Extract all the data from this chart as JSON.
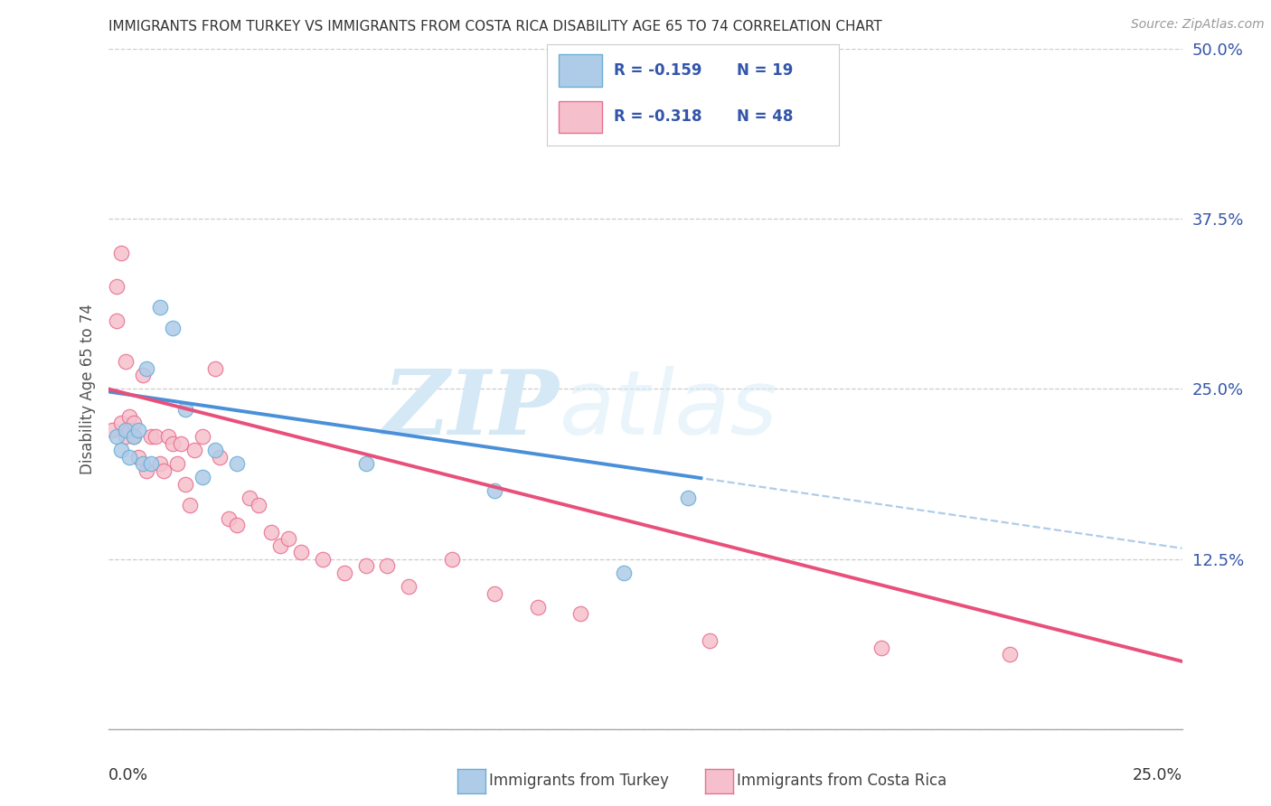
{
  "title": "IMMIGRANTS FROM TURKEY VS IMMIGRANTS FROM COSTA RICA DISABILITY AGE 65 TO 74 CORRELATION CHART",
  "source": "Source: ZipAtlas.com",
  "ylabel": "Disability Age 65 to 74",
  "xlim": [
    0.0,
    0.25
  ],
  "ylim": [
    0.0,
    0.5
  ],
  "yticks": [
    0.0,
    0.125,
    0.25,
    0.375,
    0.5
  ],
  "ytick_labels": [
    "",
    "12.5%",
    "25.0%",
    "37.5%",
    "50.0%"
  ],
  "turkey_R": -0.159,
  "turkey_N": 19,
  "costa_rica_R": -0.318,
  "costa_rica_N": 48,
  "turkey_color": "#aecce8",
  "turkey_edge_color": "#6aaed6",
  "turkey_line_color": "#4a90d9",
  "costa_rica_color": "#f5c0cc",
  "costa_rica_edge_color": "#e87090",
  "costa_rica_line_color": "#e8507a",
  "dashed_color": "#b0cce8",
  "grid_color": "#cccccc",
  "axis_color": "#aaaaaa",
  "title_color": "#333333",
  "legend_text_color": "#3355aa",
  "source_color": "#999999",
  "turkey_x": [
    0.002,
    0.003,
    0.004,
    0.005,
    0.006,
    0.007,
    0.008,
    0.009,
    0.01,
    0.012,
    0.015,
    0.018,
    0.022,
    0.025,
    0.03,
    0.06,
    0.09,
    0.12,
    0.135
  ],
  "turkey_y": [
    0.215,
    0.205,
    0.22,
    0.2,
    0.215,
    0.22,
    0.195,
    0.265,
    0.195,
    0.31,
    0.295,
    0.235,
    0.185,
    0.205,
    0.195,
    0.195,
    0.175,
    0.115,
    0.17
  ],
  "costa_rica_x": [
    0.001,
    0.002,
    0.002,
    0.003,
    0.003,
    0.004,
    0.004,
    0.005,
    0.005,
    0.006,
    0.006,
    0.007,
    0.008,
    0.009,
    0.01,
    0.011,
    0.012,
    0.013,
    0.014,
    0.015,
    0.016,
    0.017,
    0.018,
    0.019,
    0.02,
    0.022,
    0.025,
    0.026,
    0.028,
    0.03,
    0.033,
    0.035,
    0.038,
    0.04,
    0.042,
    0.045,
    0.05,
    0.055,
    0.06,
    0.065,
    0.07,
    0.08,
    0.09,
    0.1,
    0.11,
    0.14,
    0.18,
    0.21
  ],
  "costa_rica_y": [
    0.22,
    0.325,
    0.3,
    0.35,
    0.225,
    0.27,
    0.215,
    0.23,
    0.22,
    0.225,
    0.215,
    0.2,
    0.26,
    0.19,
    0.215,
    0.215,
    0.195,
    0.19,
    0.215,
    0.21,
    0.195,
    0.21,
    0.18,
    0.165,
    0.205,
    0.215,
    0.265,
    0.2,
    0.155,
    0.15,
    0.17,
    0.165,
    0.145,
    0.135,
    0.14,
    0.13,
    0.125,
    0.115,
    0.12,
    0.12,
    0.105,
    0.125,
    0.1,
    0.09,
    0.085,
    0.065,
    0.06,
    0.055
  ]
}
